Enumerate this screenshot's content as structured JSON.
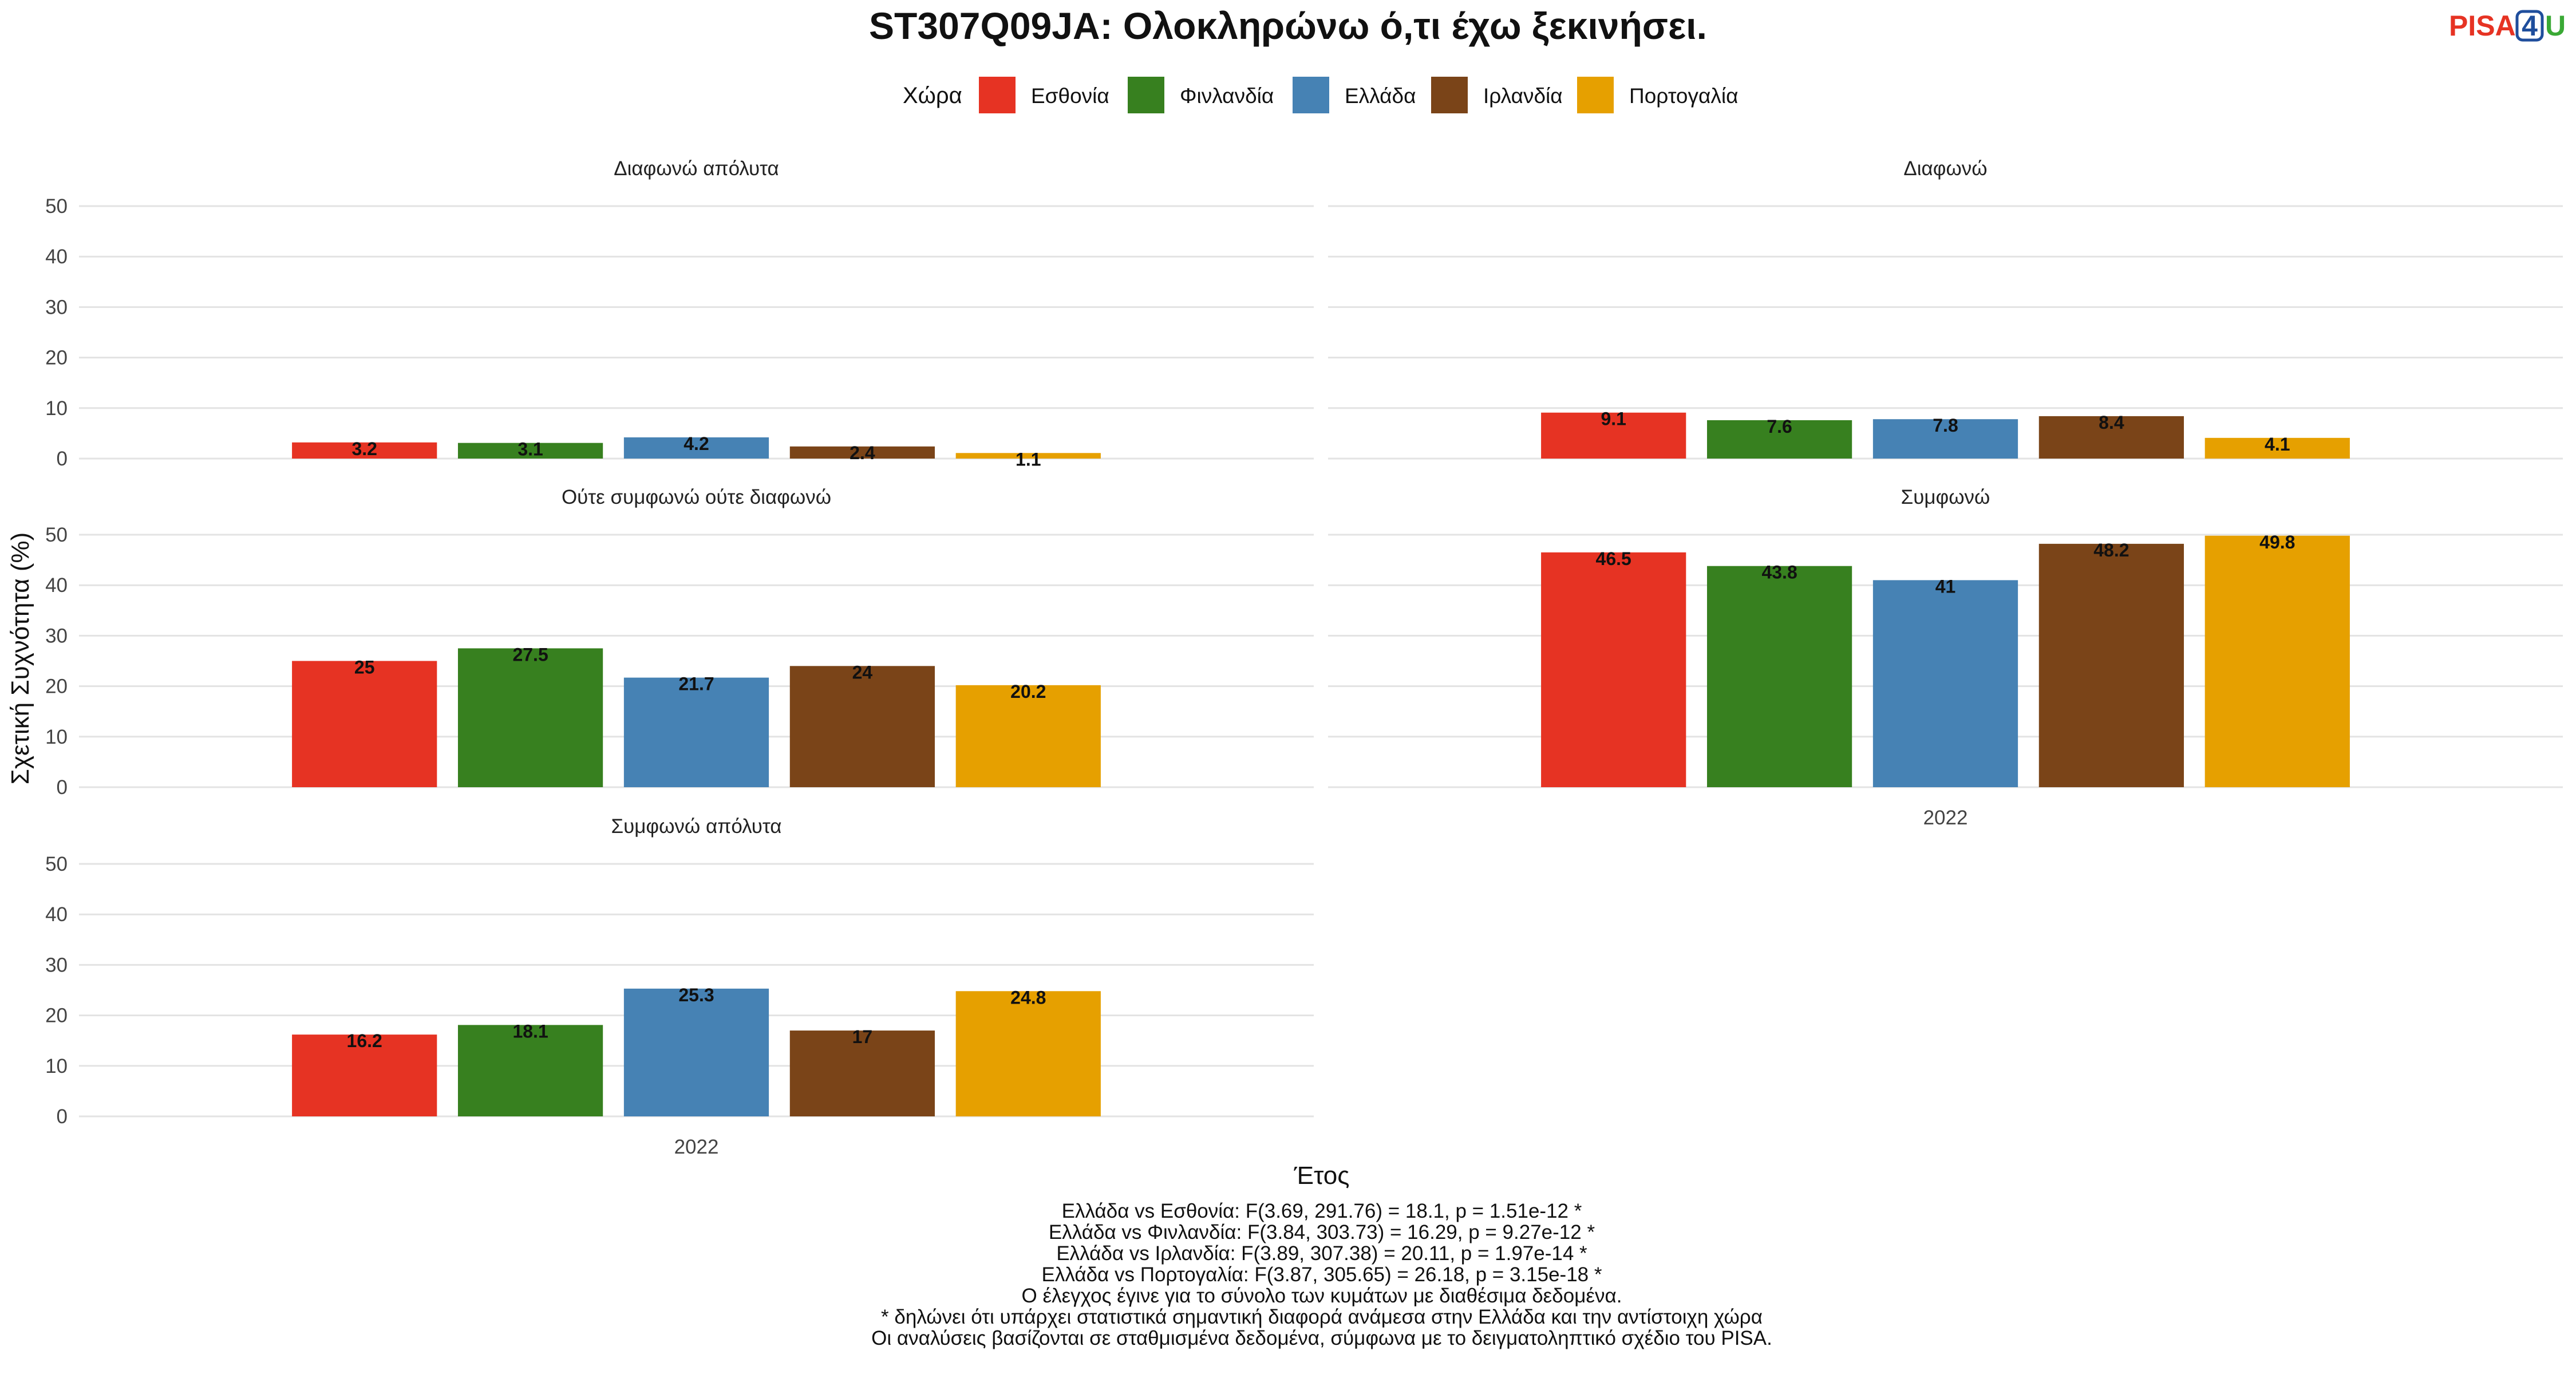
{
  "logo": {
    "part1": "PISA",
    "part2": "4",
    "part3": "U",
    "color1": "#e63323",
    "color2": "#1f4e9c",
    "color3": "#3aa935"
  },
  "chart_data": {
    "type": "bar",
    "title": "ST307Q09JA: Ολοκληρώνω ό,τι έχω ξεκινήσει.",
    "ylabel": "Σχετική Συχνότητα (%)",
    "xlabel": "Έτος",
    "ylim": [
      0,
      50
    ],
    "yticks": [
      0,
      10,
      20,
      30,
      40,
      50
    ],
    "grid": true,
    "legend": {
      "title": "Χώρα",
      "position": "top",
      "entries": [
        "Εσθονία",
        "Φινλανδία",
        "Ελλάδα",
        "Ιρλανδία",
        "Πορτογαλία"
      ],
      "colors": [
        "#e63323",
        "#37801f",
        "#4682b4",
        "#7a4418",
        "#e6a000"
      ]
    },
    "categories": [
      "2022"
    ],
    "panels": [
      {
        "title": "Διαφωνώ απόλυτα",
        "values": [
          3.2,
          3.1,
          4.2,
          2.4,
          1.1
        ],
        "labels": [
          "3.2",
          "3.1",
          "4.2",
          "2.4",
          "1.1"
        ]
      },
      {
        "title": "Διαφωνώ",
        "values": [
          9.1,
          7.6,
          7.8,
          8.4,
          4.1
        ],
        "labels": [
          "9.1",
          "7.6",
          "7.8",
          "8.4",
          "4.1"
        ]
      },
      {
        "title": "Ούτε συμφωνώ ούτε διαφωνώ",
        "values": [
          25,
          27.5,
          21.7,
          24,
          20.2
        ],
        "labels": [
          "25",
          "27.5",
          "21.7",
          "24",
          "20.2"
        ]
      },
      {
        "title": "Συμφωνώ",
        "values": [
          46.5,
          43.8,
          41,
          48.2,
          49.8
        ],
        "labels": [
          "46.5",
          "43.8",
          "41",
          "48.2",
          "49.8"
        ]
      },
      {
        "title": "Συμφωνώ απόλυτα",
        "values": [
          16.2,
          18.1,
          25.3,
          17,
          24.8
        ],
        "labels": [
          "16.2",
          "18.1",
          "25.3",
          "17",
          "24.8"
        ]
      }
    ],
    "xtick_label": "2022",
    "footnotes": [
      "Ελλάδα vs Εσθονία: F(3.69, 291.76) = 18.1, p = 1.51e-12 *",
      "Ελλάδα vs Φινλανδία: F(3.84, 303.73) = 16.29, p = 9.27e-12 *",
      "Ελλάδα vs Ιρλανδία: F(3.89, 307.38) = 20.11, p = 1.97e-14 *",
      "Ελλάδα vs Πορτογαλία: F(3.87, 305.65) = 26.18, p = 3.15e-18 *",
      "Ο έλεγχος έγινε για το σύνολο των κυμάτων με διαθέσιμα δεδομένα.",
      "* δηλώνει ότι υπάρχει στατιστικά σημαντική διαφορά ανάμεσα στην Ελλάδα και την αντίστοιχη χώρα",
      "Οι αναλύσεις βασίζονται σε σταθμισμένα δεδομένα, σύμφωνα με το δειγματοληπτικό σχέδιο του PISA."
    ]
  }
}
